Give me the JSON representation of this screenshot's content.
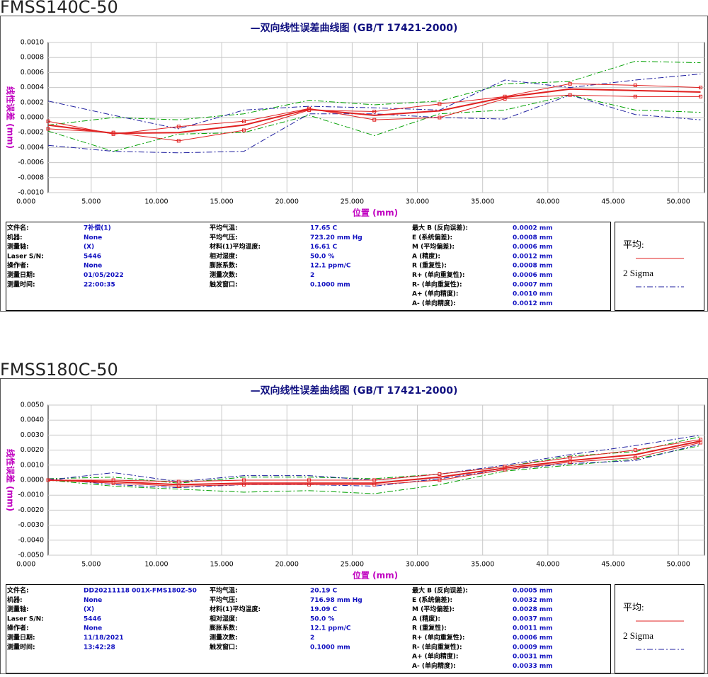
{
  "panels": [
    {
      "heading": "FMSS140C-50",
      "info": [
        [
          [
            "文件名:",
            "7补偿(1)"
          ],
          [
            "机器:",
            "None"
          ],
          [
            "测量轴:",
            "(X)"
          ],
          [
            "Laser S/N:",
            "5446"
          ],
          [
            "操作者:",
            "None"
          ],
          [
            "测量日期:",
            "01/05/2022"
          ],
          [
            "测量时间:",
            "22:00:35"
          ]
        ],
        [
          [
            "平均气温:",
            "17.65 C"
          ],
          [
            "平均气压:",
            "723.20 mm Hg"
          ],
          [
            "材料(1)平均温度:",
            "16.61 C"
          ],
          [
            "相对湿度:",
            "50.0 %"
          ],
          [
            "膨胀系数:",
            "12.1 ppm/C"
          ],
          [
            "测量次数:",
            "2"
          ],
          [
            "触发窗口:",
            "0.1000 mm"
          ]
        ],
        [
          [
            "最大 B (反向误差):",
            "0.0002 mm"
          ],
          [
            "E (系统偏差):",
            "0.0008 mm"
          ],
          [
            "M (平均偏差):",
            "0.0006 mm"
          ],
          [
            "A (精度):",
            "0.0012 mm"
          ],
          [
            "R (重复性):",
            "0.0008 mm"
          ],
          [
            "R+ (单向重复性):",
            "0.0006 mm"
          ],
          [
            "R- (单向重复性):",
            "0.0007 mm"
          ],
          [
            "A+ (单向精度):",
            "0.0010 mm"
          ],
          [
            "A- (单向精度):",
            "0.0012 mm"
          ]
        ]
      ]
    },
    {
      "heading": "FMSS180C-50",
      "info": [
        [
          [
            "文件名:",
            "DD20211118 001X-FMS180Z-50"
          ],
          [
            "机器:",
            "None"
          ],
          [
            "测量轴:",
            "(X)"
          ],
          [
            "Laser S/N:",
            "5446"
          ],
          [
            "操作者:",
            "None"
          ],
          [
            "测量日期:",
            "11/18/2021"
          ],
          [
            "测量时间:",
            "13:42:28"
          ]
        ],
        [
          [
            "平均气温:",
            "20.19 C"
          ],
          [
            "平均气压:",
            "716.98 mm Hg"
          ],
          [
            "材料(1)平均温度:",
            "19.09 C"
          ],
          [
            "相对湿度:",
            "50.0 %"
          ],
          [
            "膨胀系数:",
            "12.1 ppm/C"
          ],
          [
            "测量次数:",
            "2"
          ],
          [
            "触发窗口:",
            "0.1000 mm"
          ]
        ],
        [
          [
            "最大 B (反向误差):",
            "0.0005 mm"
          ],
          [
            "E (系统偏差):",
            "0.0032 mm"
          ],
          [
            "M (平均偏差):",
            "0.0028 mm"
          ],
          [
            "A (精度):",
            "0.0037 mm"
          ],
          [
            "R (重复性):",
            "0.0011 mm"
          ],
          [
            "R+ (单向重复性):",
            "0.0006 mm"
          ],
          [
            "R- (单向重复性):",
            "0.0009 mm"
          ],
          [
            "A+ (单向精度):",
            "0.0031 mm"
          ],
          [
            "A- (单向精度):",
            "0.0033 mm"
          ]
        ]
      ]
    }
  ],
  "chart_data": [
    {
      "type": "line",
      "title": "—双向线性误差曲线图 (GB/T 17421-2000)",
      "x_label": "位置 (mm)",
      "y_label": "线性误差 (mm)",
      "x": [
        1.7,
        6.7,
        11.7,
        16.7,
        21.7,
        26.7,
        31.7,
        36.7,
        41.7,
        46.7,
        51.7
      ],
      "xlim": [
        1.7,
        52
      ],
      "xticks": [
        {
          "value": 0,
          "label": "0.000"
        },
        {
          "value": 5,
          "label": "5.000"
        },
        {
          "value": 10,
          "label": "10.000"
        },
        {
          "value": 15,
          "label": "15.000"
        },
        {
          "value": 20,
          "label": "20.000"
        },
        {
          "value": 25,
          "label": "25.000"
        },
        {
          "value": 30,
          "label": "30.000"
        },
        {
          "value": 35,
          "label": "35.000"
        },
        {
          "value": 40,
          "label": "40.000"
        },
        {
          "value": 45,
          "label": "45.000"
        },
        {
          "value": 50,
          "label": "50.000"
        }
      ],
      "ylim": [
        -0.001,
        0.001
      ],
      "yticks": [
        {
          "value": -0.001,
          "label": "-0.0010"
        },
        {
          "value": -0.0008,
          "label": "-0.0008"
        },
        {
          "value": -0.0006,
          "label": "-0.0006"
        },
        {
          "value": -0.0004,
          "label": "-0.0004"
        },
        {
          "value": -0.0002,
          "label": "-0.0002"
        },
        {
          "value": 0,
          "label": "0.0000"
        },
        {
          "value": 0.0002,
          "label": "0.0002"
        },
        {
          "value": 0.0004,
          "label": "0.0004"
        },
        {
          "value": 0.0006,
          "label": "0.0006"
        },
        {
          "value": 0.0008,
          "label": "0.0008"
        },
        {
          "value": 0.001,
          "label": "0.0010"
        }
      ],
      "grid": true,
      "series": [
        {
          "color": "#00a000",
          "style": "dashdot",
          "width": 1,
          "values": [
            -0.0001,
            0,
            -3e-05,
            5e-05,
            0.00023,
            0.00017,
            0.00022,
            0.00045,
            0.00048,
            0.00075,
            0.00073
          ]
        },
        {
          "color": "#00a000",
          "style": "dashdot",
          "width": 1,
          "values": [
            -0.00018,
            -0.00045,
            -0.00022,
            -0.0002,
            3e-05,
            -0.00024,
            5e-05,
            0.0001,
            0.0003,
            0.0001,
            7e-05
          ]
        },
        {
          "name": "2 Sigma",
          "color": "#2020a0",
          "style": "dashdot",
          "width": 1,
          "values": [
            0.00022,
            3e-05,
            -0.00015,
            0.0001,
            0.00015,
            0.00013,
            0.0001,
            0.0005,
            0.0004,
            0.0005,
            0.00058
          ]
        },
        {
          "color": "#2020a0",
          "style": "dashdot",
          "width": 1,
          "values": [
            -0.00037,
            -0.00045,
            -0.00047,
            -0.00045,
            5e-05,
            5e-05,
            0,
            -2e-05,
            0.0003,
            4e-05,
            -3e-05
          ]
        },
        {
          "color": "#e02020",
          "style": "solid",
          "width": 1,
          "values": [
            -0.00015,
            -0.0002,
            -0.00031,
            -0.00017,
            0.0001,
            8e-05,
            0.00018,
            0.00028,
            0.00045,
            0.00043,
            0.0004
          ]
        },
        {
          "color": "#e02020",
          "style": "solid",
          "width": 1,
          "values": [
            -5e-05,
            -0.00022,
            -0.00012,
            -5e-05,
            0.00012,
            -3e-05,
            0,
            0.00025,
            0.0003,
            0.00028,
            0.00028
          ]
        },
        {
          "name": "平均:",
          "color": "#e02020",
          "style": "solid",
          "width": 2,
          "values": [
            -0.0001,
            -0.00021,
            -0.0002,
            -0.0001,
            0.00011,
            3e-05,
            9e-05,
            0.00027,
            0.00038,
            0.00036,
            0.00034
          ]
        }
      ]
    },
    {
      "type": "line",
      "title": "—双向线性误差曲线图 (GB/T 17421-2000)",
      "x_label": "位置 (mm)",
      "y_label": "线性误差 (mm)",
      "x": [
        1.7,
        6.7,
        11.7,
        16.7,
        21.7,
        26.7,
        31.7,
        36.7,
        41.7,
        46.7,
        51.7
      ],
      "xlim": [
        1.7,
        52
      ],
      "xticks": [
        {
          "value": 0,
          "label": "0.000"
        },
        {
          "value": 5,
          "label": "5.000"
        },
        {
          "value": 10,
          "label": "10.000"
        },
        {
          "value": 15,
          "label": "15.000"
        },
        {
          "value": 20,
          "label": "20.000"
        },
        {
          "value": 25,
          "label": "25.000"
        },
        {
          "value": 30,
          "label": "30.000"
        },
        {
          "value": 35,
          "label": "35.000"
        },
        {
          "value": 40,
          "label": "40.000"
        },
        {
          "value": 45,
          "label": "45.000"
        },
        {
          "value": 50,
          "label": "50.000"
        }
      ],
      "ylim": [
        -0.005,
        0.005
      ],
      "yticks": [
        {
          "value": -0.005,
          "label": "-0.0050"
        },
        {
          "value": -0.004,
          "label": "-0.0040"
        },
        {
          "value": -0.003,
          "label": "-0.0030"
        },
        {
          "value": -0.002,
          "label": "-0.0020"
        },
        {
          "value": -0.001,
          "label": "-0.0010"
        },
        {
          "value": 0,
          "label": "0.0000"
        },
        {
          "value": 0.001,
          "label": "0.0010"
        },
        {
          "value": 0.002,
          "label": "0.0020"
        },
        {
          "value": 0.003,
          "label": "0.0030"
        },
        {
          "value": 0.004,
          "label": "0.0040"
        },
        {
          "value": 0.005,
          "label": "0.0050"
        }
      ],
      "grid": true,
      "series": [
        {
          "color": "#00a000",
          "style": "dashdot",
          "width": 1,
          "values": [
            0.0001,
            0.0002,
            -0.0002,
            0.0002,
            0.0002,
            0.0001,
            0.0004,
            0.0009,
            0.0016,
            0.0019,
            0.0029
          ]
        },
        {
          "color": "#00a000",
          "style": "dashdot",
          "width": 1,
          "values": [
            0,
            -0.0004,
            -0.0006,
            -0.0008,
            -0.0007,
            -0.0009,
            -0.0003,
            0.0006,
            0.001,
            0.0014,
            0.0023
          ]
        },
        {
          "name": "2 Sigma",
          "color": "#2020a0",
          "style": "dashdot",
          "width": 1,
          "values": [
            0,
            0.0005,
            -0.0001,
            0.0003,
            0.0003,
            0,
            0.0004,
            0.001,
            0.0017,
            0.0023,
            0.003
          ]
        },
        {
          "color": "#2020a0",
          "style": "dashdot",
          "width": 1,
          "values": [
            0.0001,
            -0.0003,
            -0.0005,
            -0.0003,
            -0.0003,
            -0.0004,
            0.0001,
            0.0007,
            0.0011,
            0.0013,
            0.0024
          ]
        },
        {
          "color": "#e02020",
          "style": "solid",
          "width": 1,
          "values": [
            0,
            -0.0002,
            -0.0004,
            -0.0003,
            -0.0003,
            -0.0003,
            0,
            0.0007,
            0.0012,
            0.0015,
            0.0025
          ]
        },
        {
          "color": "#e02020",
          "style": "solid",
          "width": 1,
          "values": [
            0,
            0,
            -0.0001,
            0,
            0,
            0,
            0.0004,
            0.0009,
            0.0015,
            0.002,
            0.0027
          ]
        },
        {
          "name": "平均:",
          "color": "#e02020",
          "style": "solid",
          "width": 2,
          "values": [
            0,
            -0.0001,
            -0.0003,
            -0.0002,
            -0.0002,
            -0.0002,
            0.0002,
            0.0008,
            0.0013,
            0.0017,
            0.0026
          ]
        }
      ]
    }
  ]
}
